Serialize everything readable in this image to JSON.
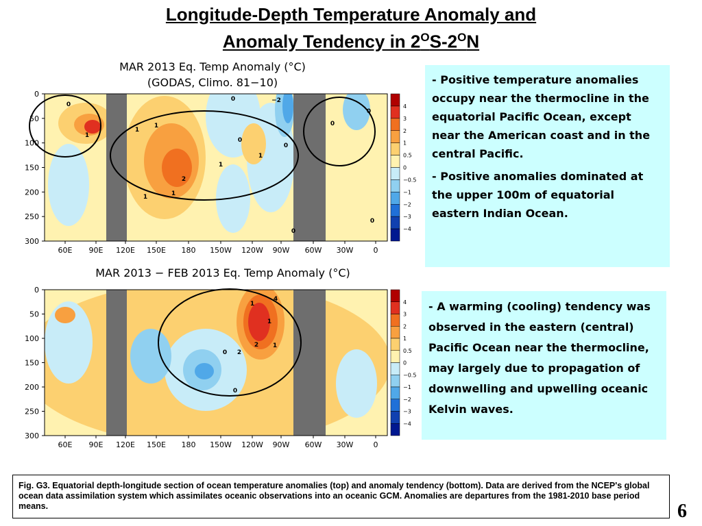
{
  "title": {
    "line1": "Longitude-Depth Temperature Anomaly and",
    "line2": [
      "Anomaly Tendency in 2",
      "O",
      "S-2",
      "O",
      "N"
    ]
  },
  "panels": [
    {
      "title": [
        "MAR 2013 Eq. Temp Anomaly (°C)",
        "(GODAS,  Climo. 81−10)"
      ],
      "yticks": [
        "0",
        "50",
        "100",
        "150",
        "200",
        "250",
        "300"
      ],
      "xticks": [
        "60E",
        "90E",
        "120E",
        "150E",
        "180",
        "150W",
        "120W",
        "90W",
        "60W",
        "30W",
        "0"
      ],
      "colorbar": [
        "4",
        "3",
        "2",
        "1",
        "0.5",
        "0",
        "−0.5",
        "−1",
        "−2",
        "−3",
        "−4"
      ],
      "contour_labels": [
        "0",
        "1",
        "1",
        "1",
        "1",
        "2",
        "1",
        "1",
        "0",
        "0",
        "0",
        "0",
        "−2",
        "0",
        "1",
        "0",
        "0"
      ]
    },
    {
      "title": [
        "MAR 2013 − FEB 2013 Eq. Temp Anomaly (°C)"
      ],
      "yticks": [
        "0",
        "50",
        "100",
        "150",
        "200",
        "250",
        "300"
      ],
      "xticks": [
        "60E",
        "90E",
        "120E",
        "150E",
        "180",
        "150W",
        "120W",
        "90W",
        "60W",
        "30W",
        "0"
      ],
      "colorbar": [
        "4",
        "3",
        "2",
        "1",
        "0.5",
        "0",
        "−0.5",
        "−1",
        "−2",
        "−3",
        "−4"
      ],
      "contour_labels": [
        "1",
        "4",
        "2",
        "1",
        "2",
        "0",
        "0",
        "1"
      ]
    }
  ],
  "notes_top": [
    "- Positive temperature anomalies  occupy  near the thermocline in the equatorial Pacific Ocean, except near the American coast and in the central Pacific.",
    "- Positive  anomalies dominated at the upper 100m of equatorial eastern Indian Ocean."
  ],
  "notes_bottom": [
    "- A warming (cooling) tendency was observed in the eastern (central) Pacific Ocean near the thermocline, may largely due to propagation of downwelling and upwelling oceanic Kelvin waves."
  ],
  "caption": "Fig. G3. Equatorial depth-longitude section of ocean temperature anomalies (top) and anomaly tendency (bottom). Data are derived from the NCEP's global ocean data assimilation system which assimilates oceanic observations into an oceanic GCM. Anomalies are departures from the 1981-2010 base period means.",
  "page_number": "6"
}
